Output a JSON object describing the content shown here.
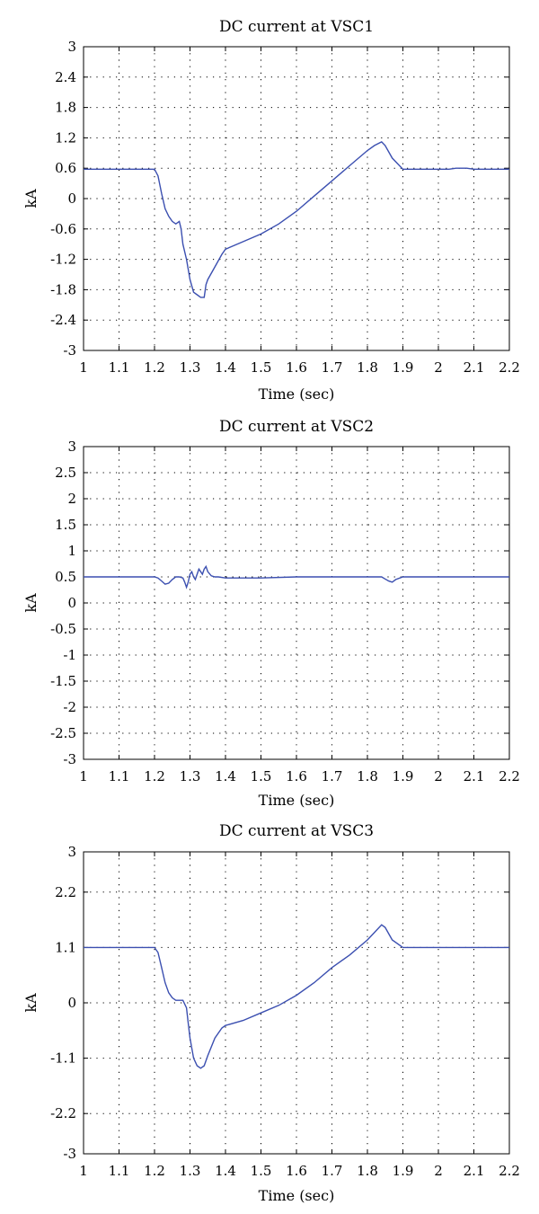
{
  "chart_data": [
    {
      "type": "line",
      "title": "DC current at VSC1",
      "xlabel": "Time (sec)",
      "ylabel": "kA",
      "xlim": [
        1,
        2.2
      ],
      "ylim": [
        -3,
        3
      ],
      "xticks": [
        1,
        1.1,
        1.2,
        1.3,
        1.4,
        1.5,
        1.6,
        1.7,
        1.8,
        1.9,
        2,
        2.1,
        2.2
      ],
      "xtick_labels": [
        "1",
        "1.1",
        "1.2",
        "1.3",
        "1.4",
        "1.5",
        "1.6",
        "1.7",
        "1.8",
        "1.9",
        "2",
        "2.1",
        "2.2"
      ],
      "yticks": [
        3,
        2.4,
        1.8,
        1.2,
        0.6,
        0,
        -0.6,
        -1.2,
        -1.8,
        -2.4,
        -3
      ],
      "ytick_labels": [
        "3",
        "2.4",
        "1.8",
        "1.2",
        "0.6",
        "0",
        "-0.6",
        "-1.2",
        "-1.8",
        "-2.4",
        "-3"
      ],
      "grid": true,
      "line_color": "#3b4fb0",
      "series": [
        {
          "x": [
            1.0,
            1.2,
            1.21,
            1.22,
            1.23,
            1.24,
            1.25,
            1.26,
            1.27,
            1.275,
            1.28,
            1.29,
            1.3,
            1.31,
            1.32,
            1.33,
            1.34,
            1.345,
            1.35,
            1.37,
            1.39,
            1.4,
            1.45,
            1.5,
            1.55,
            1.6,
            1.65,
            1.7,
            1.75,
            1.8,
            1.82,
            1.84,
            1.85,
            1.87,
            1.9,
            1.95,
            2.0,
            2.03,
            2.05,
            2.08,
            2.1,
            2.2
          ],
          "y": [
            0.58,
            0.58,
            0.45,
            0.1,
            -0.2,
            -0.35,
            -0.45,
            -0.5,
            -0.45,
            -0.6,
            -0.9,
            -1.2,
            -1.6,
            -1.85,
            -1.9,
            -1.95,
            -1.95,
            -1.7,
            -1.6,
            -1.35,
            -1.1,
            -1.0,
            -0.85,
            -0.7,
            -0.5,
            -0.25,
            0.05,
            0.35,
            0.65,
            0.95,
            1.05,
            1.12,
            1.05,
            0.8,
            0.58,
            0.58,
            0.58,
            0.58,
            0.6,
            0.6,
            0.58,
            0.58
          ]
        }
      ]
    },
    {
      "type": "line",
      "title": "DC current at VSC2",
      "xlabel": "Time (sec)",
      "ylabel": "kA",
      "xlim": [
        1,
        2.2
      ],
      "ylim": [
        -3,
        3
      ],
      "xticks": [
        1,
        1.1,
        1.2,
        1.3,
        1.4,
        1.5,
        1.6,
        1.7,
        1.8,
        1.9,
        2,
        2.1,
        2.2
      ],
      "xtick_labels": [
        "1",
        "1.1",
        "1.2",
        "1.3",
        "1.4",
        "1.5",
        "1.6",
        "1.7",
        "1.8",
        "1.9",
        "2",
        "2.1",
        "2.2"
      ],
      "yticks": [
        3,
        2.5,
        2,
        1.5,
        1,
        0.5,
        0,
        -0.5,
        -1,
        -1.5,
        -2,
        -2.5,
        -3
      ],
      "ytick_labels": [
        "3",
        "2.5",
        "2",
        "1.5",
        "1",
        "0.5",
        "0",
        "-0.5",
        "-1",
        "-1.5",
        "-2",
        "-2.5",
        "-3"
      ],
      "grid": true,
      "line_color": "#3b4fb0",
      "series": [
        {
          "x": [
            1.0,
            1.2,
            1.21,
            1.22,
            1.23,
            1.24,
            1.25,
            1.26,
            1.27,
            1.28,
            1.285,
            1.29,
            1.295,
            1.3,
            1.305,
            1.31,
            1.315,
            1.32,
            1.325,
            1.33,
            1.335,
            1.34,
            1.345,
            1.35,
            1.36,
            1.37,
            1.38,
            1.4,
            1.45,
            1.5,
            1.6,
            1.7,
            1.8,
            1.84,
            1.85,
            1.86,
            1.87,
            1.88,
            1.9,
            2.0,
            2.1,
            2.2
          ],
          "y": [
            0.5,
            0.5,
            0.48,
            0.42,
            0.36,
            0.38,
            0.45,
            0.5,
            0.5,
            0.48,
            0.4,
            0.3,
            0.4,
            0.55,
            0.6,
            0.5,
            0.45,
            0.55,
            0.65,
            0.6,
            0.55,
            0.65,
            0.7,
            0.6,
            0.52,
            0.5,
            0.5,
            0.48,
            0.48,
            0.48,
            0.5,
            0.5,
            0.5,
            0.5,
            0.46,
            0.42,
            0.4,
            0.45,
            0.5,
            0.5,
            0.5,
            0.5
          ]
        }
      ]
    },
    {
      "type": "line",
      "title": "DC current at VSC3",
      "xlabel": "Time (sec)",
      "ylabel": "kA",
      "xlim": [
        1,
        2.2
      ],
      "ylim": [
        -3,
        3
      ],
      "xticks": [
        1,
        1.1,
        1.2,
        1.3,
        1.4,
        1.5,
        1.6,
        1.7,
        1.8,
        1.9,
        2,
        2.1,
        2.2
      ],
      "xtick_labels": [
        "1",
        "1.1",
        "1.2",
        "1.3",
        "1.4",
        "1.5",
        "1.6",
        "1.7",
        "1.8",
        "1.9",
        "2",
        "2.1",
        "2.2"
      ],
      "yticks": [
        3,
        2.2,
        1.1,
        0,
        -1.1,
        -2.2,
        -3
      ],
      "ytick_labels": [
        "3",
        "2.2",
        "1.1",
        "0",
        "-1.1",
        "-2.2",
        "-3"
      ],
      "grid": true,
      "line_color": "#3b4fb0",
      "series": [
        {
          "x": [
            1.0,
            1.2,
            1.21,
            1.22,
            1.23,
            1.24,
            1.25,
            1.26,
            1.27,
            1.28,
            1.29,
            1.295,
            1.3,
            1.31,
            1.32,
            1.33,
            1.34,
            1.35,
            1.37,
            1.39,
            1.4,
            1.45,
            1.5,
            1.55,
            1.6,
            1.65,
            1.7,
            1.75,
            1.8,
            1.82,
            1.84,
            1.85,
            1.87,
            1.9,
            1.95,
            2.0,
            2.1,
            2.2
          ],
          "y": [
            1.1,
            1.1,
            1.0,
            0.7,
            0.4,
            0.2,
            0.1,
            0.05,
            0.05,
            0.05,
            -0.1,
            -0.4,
            -0.7,
            -1.1,
            -1.25,
            -1.3,
            -1.25,
            -1.05,
            -0.7,
            -0.5,
            -0.45,
            -0.35,
            -0.2,
            -0.05,
            0.15,
            0.4,
            0.7,
            0.95,
            1.25,
            1.4,
            1.55,
            1.5,
            1.25,
            1.1,
            1.1,
            1.1,
            1.1,
            1.1
          ]
        }
      ]
    }
  ]
}
